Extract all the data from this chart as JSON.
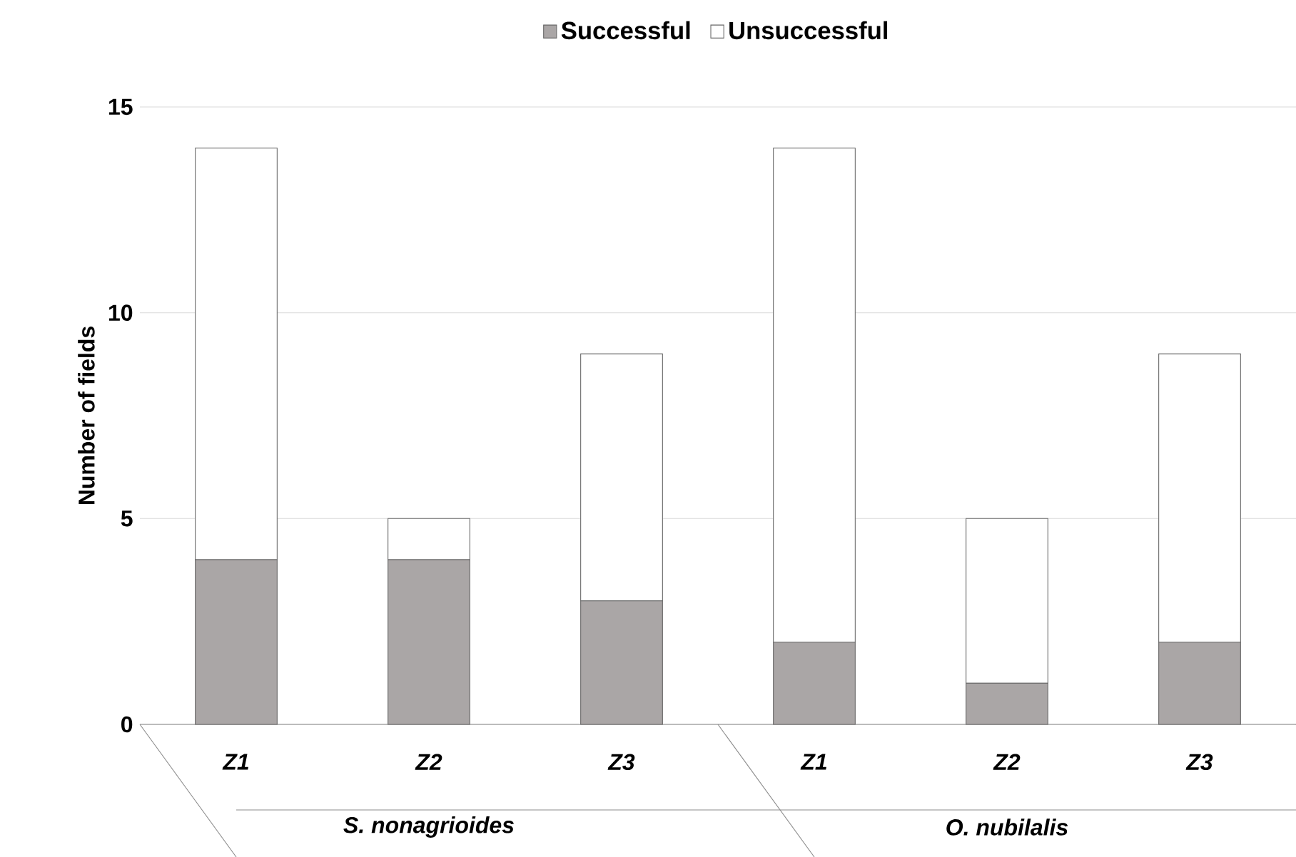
{
  "chart_data": {
    "type": "bar",
    "stacked": true,
    "ylabel": "Number of fields",
    "categories": [
      "Z1",
      "Z2",
      "Z3",
      "Z1",
      "Z2",
      "Z3"
    ],
    "series": [
      {
        "name": "Successful",
        "color": "#aaa6a6",
        "values": [
          4,
          4,
          3,
          2,
          1,
          2
        ]
      },
      {
        "name": "Unsuccessful",
        "color": "#ffffff",
        "values": [
          10,
          1,
          6,
          12,
          4,
          7
        ]
      }
    ],
    "annotations": [
      "S. nonagrioides",
      "O. nubilalis"
    ],
    "ylim": [
      0,
      15
    ],
    "yticks": [
      0,
      5,
      10,
      15
    ],
    "grid": "y",
    "legend": "top"
  }
}
